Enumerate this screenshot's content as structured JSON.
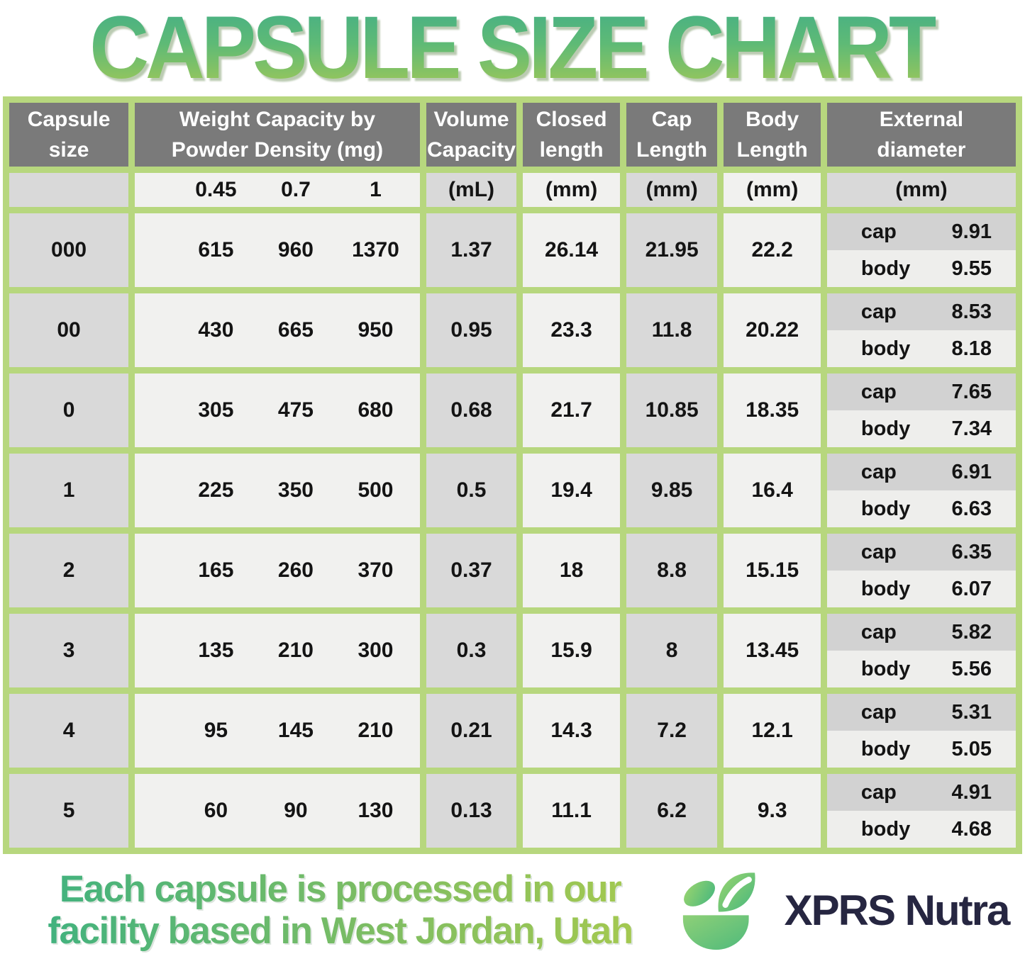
{
  "title": "CAPSULE SIZE CHART",
  "chart_data": {
    "type": "table",
    "title": "CAPSULE SIZE CHART",
    "headers": {
      "capsule_size": "Capsule size",
      "weight_capacity": "Weight Capacity by\nPowder Density (mg)",
      "volume_capacity": "Volume\nCapacity",
      "closed_length": "Closed\nlength",
      "cap_length": "Cap\nLength",
      "body_length": "Body\nLength",
      "external_diameter": "External\ndiameter"
    },
    "units": {
      "densities": [
        "0.45",
        "0.7",
        "1"
      ],
      "volume": "(mL)",
      "closed": "(mm)",
      "cap": "(mm)",
      "body": "(mm)",
      "external": "(mm)"
    },
    "rows": [
      {
        "size": "000",
        "weights": [
          "615",
          "960",
          "1370"
        ],
        "volume": "1.37",
        "closed": "26.14",
        "cap_len": "21.95",
        "body_len": "22.2",
        "ext": [
          {
            "label": "cap",
            "value": "9.91"
          },
          {
            "label": "body",
            "value": "9.55"
          }
        ]
      },
      {
        "size": "00",
        "weights": [
          "430",
          "665",
          "950"
        ],
        "volume": "0.95",
        "closed": "23.3",
        "cap_len": "11.8",
        "body_len": "20.22",
        "ext": [
          {
            "label": "cap",
            "value": "8.53"
          },
          {
            "label": "body",
            "value": "8.18"
          }
        ]
      },
      {
        "size": "0",
        "weights": [
          "305",
          "475",
          "680"
        ],
        "volume": "0.68",
        "closed": "21.7",
        "cap_len": "10.85",
        "body_len": "18.35",
        "ext": [
          {
            "label": "cap",
            "value": "7.65"
          },
          {
            "label": "body",
            "value": "7.34"
          }
        ]
      },
      {
        "size": "1",
        "weights": [
          "225",
          "350",
          "500"
        ],
        "volume": "0.5",
        "closed": "19.4",
        "cap_len": "9.85",
        "body_len": "16.4",
        "ext": [
          {
            "label": "cap",
            "value": "6.91"
          },
          {
            "label": "body",
            "value": "6.63"
          }
        ]
      },
      {
        "size": "2",
        "weights": [
          "165",
          "260",
          "370"
        ],
        "volume": "0.37",
        "closed": "18",
        "cap_len": "8.8",
        "body_len": "15.15",
        "ext": [
          {
            "label": "cap",
            "value": "6.35"
          },
          {
            "label": "body",
            "value": "6.07"
          }
        ]
      },
      {
        "size": "3",
        "weights": [
          "135",
          "210",
          "300"
        ],
        "volume": "0.3",
        "closed": "15.9",
        "cap_len": "8",
        "body_len": "13.45",
        "ext": [
          {
            "label": "cap",
            "value": "5.82"
          },
          {
            "label": "body",
            "value": "5.56"
          }
        ]
      },
      {
        "size": "4",
        "weights": [
          "95",
          "145",
          "210"
        ],
        "volume": "0.21",
        "closed": "14.3",
        "cap_len": "7.2",
        "body_len": "12.1",
        "ext": [
          {
            "label": "cap",
            "value": "5.31"
          },
          {
            "label": "body",
            "value": "5.05"
          }
        ]
      },
      {
        "size": "5",
        "weights": [
          "60",
          "90",
          "130"
        ],
        "volume": "0.13",
        "closed": "11.1",
        "cap_len": "6.2",
        "body_len": "9.3",
        "ext": [
          {
            "label": "cap",
            "value": "4.91"
          },
          {
            "label": "body",
            "value": "4.68"
          }
        ]
      }
    ]
  },
  "footer": {
    "line1": "Each capsule is processed in our",
    "line2": "facility based in West Jordan, Utah",
    "brand": "XPRS Nutra"
  },
  "colors": {
    "border_green": "#b7d77e",
    "header_gray": "#7a7a7a",
    "cell_gray": "#d9d9d9",
    "cell_light": "#f1f1ef",
    "title_gradient_top": "#43ae87",
    "title_gradient_bottom": "#a6c955",
    "brand_navy": "#262641"
  }
}
